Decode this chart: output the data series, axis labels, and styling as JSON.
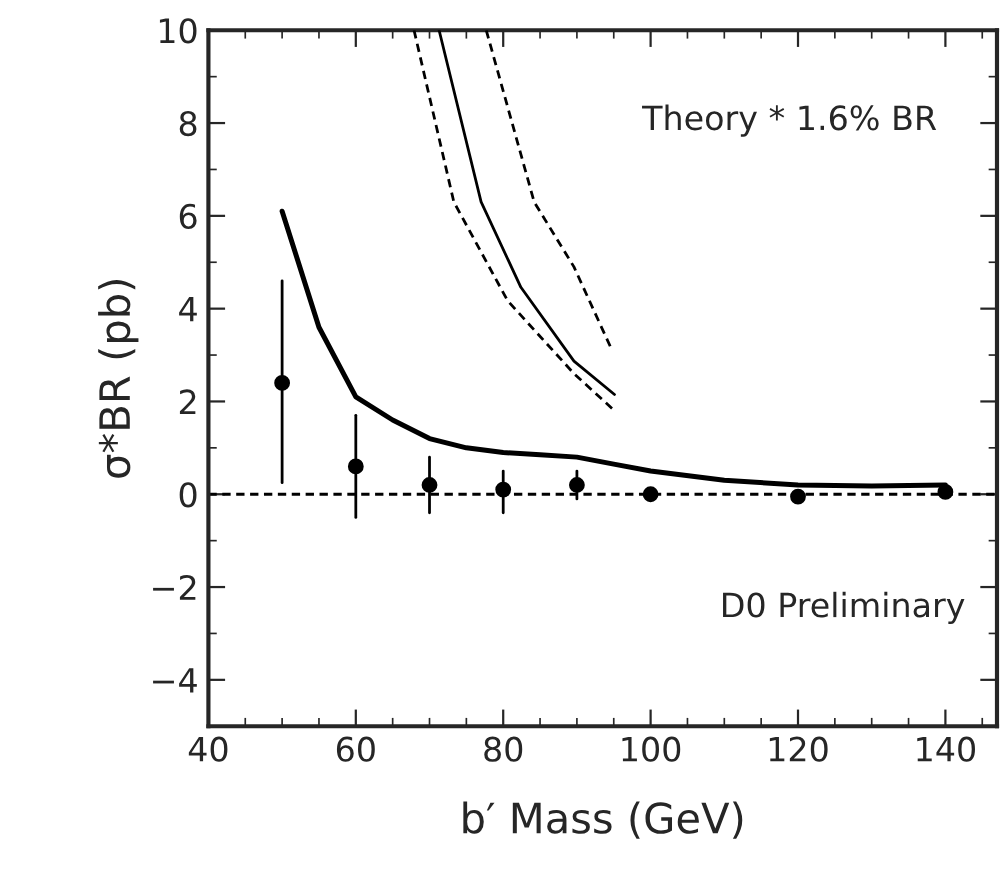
{
  "chart_data": {
    "type": "line",
    "xlabel": "b′ Mass (GeV)",
    "ylabel": "σ*BR (pb)",
    "xlim": [
      40,
      147
    ],
    "xticks": [
      40,
      60,
      80,
      100,
      120,
      140
    ],
    "ylim": [
      -5,
      10
    ],
    "yticks": [
      -4,
      -2,
      0,
      2,
      4,
      6,
      8,
      10
    ],
    "grid": false,
    "series": [
      {
        "type": "scatter",
        "color": "#000000",
        "marker": "circle",
        "x": [
          50,
          60,
          70,
          80,
          90,
          100,
          120,
          140
        ],
        "values": [
          2.4,
          0.6,
          0.2,
          0.1,
          0.2,
          0.0,
          -0.05,
          0.05
        ],
        "errors": [
          [
            0.25,
            4.6
          ],
          [
            -0.5,
            1.7
          ],
          [
            -0.4,
            0.8
          ],
          [
            -0.4,
            0.5
          ],
          [
            -0.1,
            0.5
          ],
          null,
          null,
          null
        ]
      },
      {
        "color": "#000000",
        "line_style": "solid",
        "x": [
          50,
          55,
          60,
          65,
          70,
          75,
          80,
          85,
          90,
          95,
          100,
          110,
          120,
          130,
          140
        ],
        "values": [
          6.1,
          3.6,
          2.1,
          1.6,
          1.2,
          1.0,
          0.9,
          0.85,
          0.8,
          0.65,
          0.5,
          0.3,
          0.2,
          0.18,
          0.2
        ]
      },
      {
        "color": "#000000",
        "line_style": "solid",
        "x": [
          71.3,
          77.0,
          82.4,
          89.6,
          95.1
        ],
        "values": [
          10,
          6.3,
          4.46,
          2.87,
          2.15
        ]
      },
      {
        "color": "#000000",
        "line_style": "dashed",
        "x": [
          77.7,
          84.2,
          89.6,
          94.6
        ],
        "values": [
          10,
          6.3,
          4.9,
          3.16
        ]
      },
      {
        "color": "#000000",
        "line_style": "dashed",
        "x": [
          67.9,
          73.3,
          80.6,
          89.6,
          95.1
        ],
        "values": [
          10,
          6.3,
          4.17,
          2.6,
          1.8
        ]
      }
    ],
    "ref_lines": [
      {
        "axis": "y",
        "value": 0,
        "line_style": "dashed",
        "color": "#000000"
      }
    ],
    "annotations": [
      "Theory * 1.6% BR",
      "D0 Preliminary"
    ]
  }
}
